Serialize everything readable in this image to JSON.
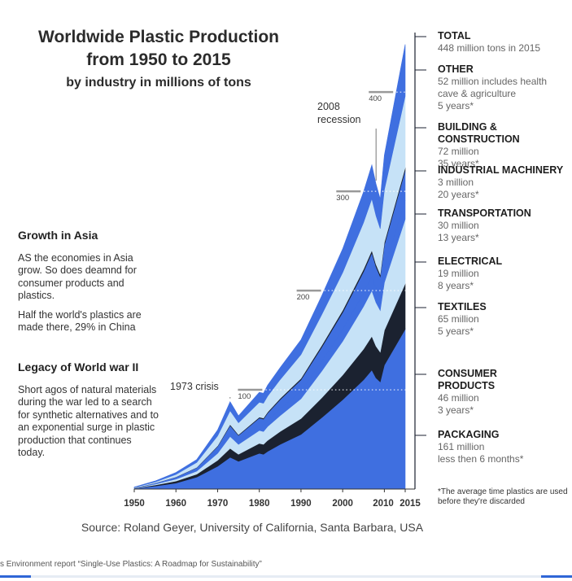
{
  "title": {
    "line1": "Worldwide Plastic Production",
    "line2": "from 1950 to 2015",
    "line3": "by industry in millions of tons"
  },
  "side": {
    "asia_heading": "Growth in Asia",
    "asia_p1": "AS the economies in Asia grow. So does deamnd for consumer products and plastics.",
    "asia_p2": "Half the world's plastics are made there, 29% in China",
    "ww2_heading": "Legacy of World war II",
    "ww2_p1": "Short agos of natural materials during the war led to a search for synthetic alternatives and to an exponential surge in plastic production that continues today."
  },
  "legend": [
    {
      "name": "TOTAL",
      "detail": "448 million tons in 2015"
    },
    {
      "name": "OTHER",
      "detail": "52 million includes health\ncave & agriculture\n5 years*"
    },
    {
      "name": "BUILDING & CONSTRUCTION",
      "detail": "72 million\n35 years*"
    },
    {
      "name": "INDUSTRIAL MACHINERY",
      "detail": "3 million\n20 years*"
    },
    {
      "name": "TRANSPORTATION",
      "detail": "30 million\n13 years*"
    },
    {
      "name": "ELECTRICAL",
      "detail": "19 million\n8 years*"
    },
    {
      "name": "TEXTILES",
      "detail": "65 million\n5 years*"
    },
    {
      "name": "CONSUMER\nPRODUCTS",
      "detail": "46 million\n3 years*"
    },
    {
      "name": "PACKAGING",
      "detail": "161 million\nless then 6 months*"
    }
  ],
  "footnote": "*The average time plastics are used before they're discarded",
  "source": "Source: Roland Geyer, University of California, Santa Barbara, USA",
  "report": "s Environment report “Single-Use Plastics: A Roadmap for Sustainability”",
  "chart_data": {
    "type": "area",
    "stacked": true,
    "x": [
      1950,
      1955,
      1960,
      1965,
      1970,
      1973,
      1974,
      1975,
      1980,
      1981,
      1982,
      1985,
      1990,
      1995,
      2000,
      2005,
      2007,
      2008,
      2009,
      2010,
      2015
    ],
    "series": [
      {
        "name": "PACKAGING",
        "color": "#3f6fe0",
        "values": [
          0.7,
          3,
          6,
          12,
          23,
          32,
          30,
          28,
          36,
          35,
          38,
          45,
          55,
          72,
          90,
          110,
          120,
          112,
          108,
          125,
          161
        ]
      },
      {
        "name": "CONSUMER PRODUCTS",
        "color": "#1b2230",
        "values": [
          0.2,
          1,
          2,
          3,
          6,
          9,
          8,
          7,
          10,
          10,
          11,
          13,
          16,
          20,
          25,
          31,
          34,
          32,
          30,
          35,
          46
        ]
      },
      {
        "name": "TEXTILES",
        "color": "#c6e2f7",
        "values": [
          0.2,
          1,
          2,
          3,
          7,
          12,
          11,
          10,
          13,
          13,
          14,
          16,
          20,
          27,
          34,
          43,
          46,
          44,
          42,
          48,
          65
        ]
      },
      {
        "name": "ELECTRICAL",
        "color": "#3f6fe0",
        "values": [
          0.1,
          0.4,
          1,
          1.5,
          3,
          5,
          4.5,
          4,
          5.5,
          5.5,
          6,
          7,
          8,
          10,
          12,
          14,
          15,
          14,
          13,
          15,
          19
        ]
      },
      {
        "name": "TRANSPORTATION",
        "color": "#3f6fe0",
        "values": [
          0.1,
          0.6,
          1,
          2,
          4,
          6,
          5.5,
          5,
          7,
          7,
          7.5,
          9,
          11,
          14,
          17,
          21,
          23,
          22,
          21,
          23,
          30
        ]
      },
      {
        "name": "INDUSTRIAL MACHINERY",
        "color": "#1b2230",
        "values": [
          0.05,
          0.1,
          0.2,
          0.3,
          0.6,
          1,
          0.9,
          0.8,
          1,
          1,
          1.1,
          1.3,
          1.5,
          1.9,
          2.2,
          2.5,
          2.6,
          2.5,
          2.4,
          2.6,
          3
        ]
      },
      {
        "name": "BUILDING & CONSTRUCTION",
        "color": "#c6e2f7",
        "values": [
          0.3,
          1,
          2.5,
          5,
          10,
          14,
          13,
          12,
          15,
          15,
          16,
          19,
          24,
          31,
          38,
          47,
          52,
          49,
          46,
          53,
          72
        ]
      },
      {
        "name": "OTHER",
        "color": "#3f6fe0",
        "values": [
          0.3,
          1,
          2,
          3,
          6,
          9,
          8,
          7,
          10,
          10,
          11,
          12,
          15,
          19,
          24,
          31,
          34,
          32,
          30,
          35,
          52
        ]
      }
    ],
    "xticks": [
      "1950",
      "1960",
      "1970",
      "1980",
      "1990",
      "2000",
      "2010",
      "2015"
    ],
    "yticks": [
      "100",
      "200",
      "300",
      "400"
    ],
    "xlim": [
      1950,
      2015
    ],
    "ylim": [
      0,
      460
    ],
    "annotations": [
      {
        "text": "1973 crisis",
        "x": 1973
      },
      {
        "text": "2008 recession",
        "x": 2008
      }
    ]
  }
}
